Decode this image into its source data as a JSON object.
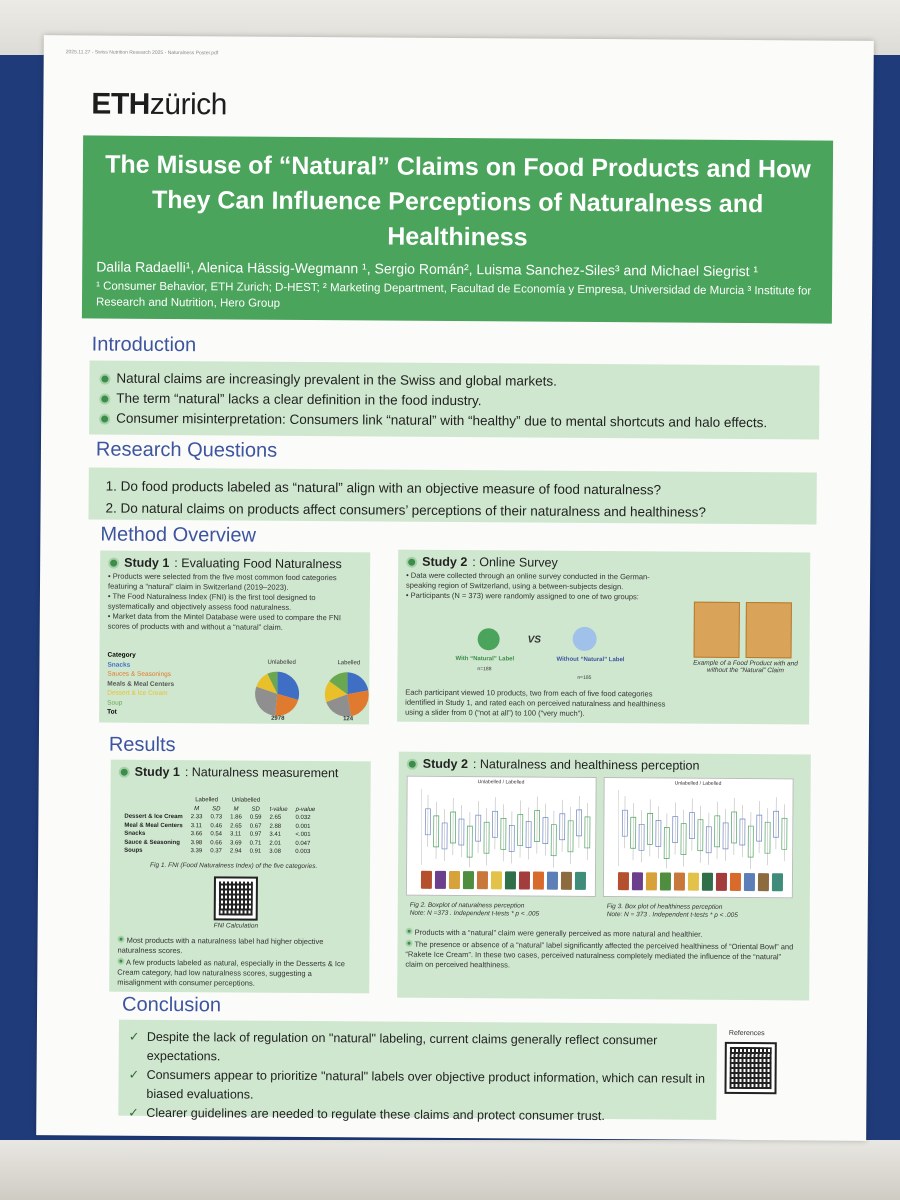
{
  "meta_line": "2025.11.27 - Swiss Nutrition Research 2025 - Naturalness Poster.pdf",
  "logo": {
    "bold": "ETH",
    "rest": "zürich"
  },
  "title": "The Misuse of “Natural” Claims on Food Products and How They Can Influence Perceptions of Naturalness and Healthiness",
  "authors": "Dalila Radaelli¹, Alenica Hässig-Wegmann ¹, Sergio Román², Luisma Sanchez-Siles³ and Michael Siegrist ¹",
  "affiliations": "¹ Consumer Behavior, ETH Zurich; D-HEST; ² Marketing Department, Facultad de Economía y Empresa, Universidad de Murcia ³ Institute for Research and Nutrition, Hero Group",
  "sections": {
    "introduction": "Introduction",
    "research_questions": "Research Questions",
    "method": "Method Overview",
    "results": "Results",
    "conclusion": "Conclusion"
  },
  "introduction_items": [
    "Natural claims are increasingly prevalent in the Swiss and global markets.",
    "The term “natural” lacks a clear definition in the food industry.",
    "Consumer misinterpretation: Consumers link “natural” with “healthy” due to mental shortcuts and halo effects."
  ],
  "research_questions": [
    "Do food products labeled as “natural” align with an objective measure of food naturalness?",
    "Do natural claims on products affect consumers’ perceptions of their naturalness and healthiness?"
  ],
  "study1_method": {
    "title_bold": "Study 1",
    "title_rest": ": Evaluating Food Naturalness",
    "bullets": [
      "Products were selected from the five most common food categories featuring a “natural” claim in Switzerland (2019–2023).",
      "The Food Naturalness Index (FNI) is the first tool designed to systematically and objectively assess food naturalness.",
      "Market data from the Mintel Database were used to compare the FNI scores of products with and without a “natural” claim."
    ],
    "category_header": "Category",
    "categories": [
      {
        "name": "Snacks",
        "color": "#3f6fc4"
      },
      {
        "name": "Sauces & Seasonings",
        "color": "#e07a2e"
      },
      {
        "name": "Meals & Meal Centers",
        "color": "#8f8f8f"
      },
      {
        "name": "Dessert & Ice Cream",
        "color": "#e9bf2a"
      },
      {
        "name": "Soup",
        "color": "#6aa84f"
      },
      {
        "name": "Tot",
        "color": "#222222"
      }
    ],
    "unlabelled_label": "Unlabelled",
    "labelled_label": "Labelled",
    "unlabelled_total": "2978",
    "labelled_total": "124"
  },
  "study2_method": {
    "title_bold": "Study 2",
    "title_rest": ": Online Survey",
    "bullets": [
      "Data were collected through an online survey conducted in the German-speaking region of Switzerland, using a between-subjects design.",
      "Participants (N = 373) were randomly assigned to one of two groups:"
    ],
    "group_with": "With “Natural” Label",
    "group_with_n": "n=188",
    "vs": "VS",
    "group_without": "Without “Natural” Label",
    "group_without_n": "n=185",
    "example_caption": "Example of a Food Product with and without the “Natural” Claim",
    "final_bullet": "Each participant viewed 10 products, two from each of five food categories identified in Study 1, and rated each on perceived naturalness and healthiness using a slider from 0 (“not at all”) to 100 (“very much”)."
  },
  "study1_results": {
    "title_bold": "Study 1",
    "title_rest": ": Naturalness measurement",
    "table_groups": [
      "Labelled",
      "Unlabelled"
    ],
    "table_cols": [
      "M",
      "SD",
      "M",
      "SD",
      "t-value",
      "p-value"
    ],
    "table_rows": [
      [
        "Dessert & Ice Cream",
        "2.33",
        "0.73",
        "1.86",
        "0.59",
        "2.65",
        "0.032"
      ],
      [
        "Meal & Meal Centers",
        "3.11",
        "0.46",
        "2.65",
        "0.67",
        "2.88",
        "0.001"
      ],
      [
        "Snacks",
        "3.66",
        "0.54",
        "3.11",
        "0.97",
        "3.41",
        "<.001"
      ],
      [
        "Sauce & Seasoning",
        "3.98",
        "0.66",
        "3.69",
        "0.71",
        "2.01",
        "0.047"
      ],
      [
        "Soups",
        "3.39",
        "0.37",
        "2.94",
        "0.91",
        "3.08",
        "0.003"
      ]
    ],
    "table_caption": "Fig 1. FNI (Food Naturalness Index) of the five categories.",
    "qr_caption": "FNI Calculation",
    "findings": [
      "Most products with a naturalness label had higher objective naturalness scores.",
      "A few products labeled as natural, especially in the Desserts & Ice Cream category, had low naturalness scores, suggesting a misalignment with consumer perceptions."
    ]
  },
  "study2_results": {
    "title_bold": "Study 2",
    "title_rest": ": Naturalness and healthiness perception",
    "legend_unlabelled": "Unlabelled",
    "legend_labelled": "Labelled",
    "fig2_caption": "Fig 2. Boxplot of naturalness perception",
    "fig2_note": "Note: N =373 . Independent t-tests * p < .005",
    "fig3_caption": "Fig 3. Box plot of healthiness perception",
    "fig3_note": "Note: N = 373 . Independent t-tests * p < .005",
    "findings": [
      "Products with a “natural” claim were generally perceived as more natural and healthier.",
      "The presence or absence of a “natural” label significantly affected the perceived healthiness of “Oriental Bowl” and “Rakete Ice Cream”. In these two cases, perceived naturalness completely mediated the influence of the “natural” claim on perceived healthiness."
    ]
  },
  "conclusion_items": [
    "Despite the lack of regulation on \"natural\" labeling, current claims generally reflect consumer expectations.",
    "Consumers appear to prioritize \"natural\" labels over objective product information, which can result in biased evaluations.",
    "Clearer guidelines are needed to regulate these claims and protect consumer trust."
  ],
  "references_label": "References",
  "colors": {
    "green_title": "#4aa45b",
    "green_box": "#cfe7cf",
    "section_blue": "#3d55a0",
    "board_blue": "#1f3b7a"
  }
}
